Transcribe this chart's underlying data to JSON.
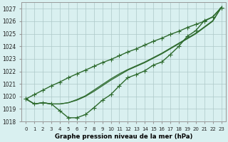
{
  "x": [
    0,
    1,
    2,
    3,
    4,
    5,
    6,
    7,
    8,
    9,
    10,
    11,
    12,
    13,
    14,
    15,
    16,
    17,
    18,
    19,
    20,
    21,
    22,
    23
  ],
  "line_deep_dip": [
    1019.8,
    1019.4,
    1019.5,
    1019.4,
    1018.85,
    1018.3,
    1018.3,
    1018.55,
    1019.1,
    1019.7,
    1020.15,
    1020.85,
    1021.5,
    1021.75,
    1022.05,
    1022.5,
    1022.75,
    1023.35,
    1024.0,
    1024.8,
    1025.25,
    1026.05,
    1026.35,
    1027.1
  ],
  "line_straight": [
    1019.8,
    1020.15,
    1020.5,
    1020.85,
    1021.15,
    1021.5,
    1021.8,
    1022.1,
    1022.4,
    1022.7,
    1022.95,
    1023.25,
    1023.55,
    1023.8,
    1024.1,
    1024.4,
    1024.65,
    1024.95,
    1025.2,
    1025.5,
    1025.75,
    1026.0,
    1026.35,
    1027.1
  ],
  "line_mid1": [
    1019.8,
    1019.4,
    1019.5,
    1019.4,
    1019.4,
    1019.5,
    1019.7,
    1020.0,
    1020.4,
    1020.85,
    1021.3,
    1021.7,
    1022.1,
    1022.4,
    1022.7,
    1023.05,
    1023.4,
    1023.8,
    1024.2,
    1024.6,
    1025.0,
    1025.5,
    1026.0,
    1027.1
  ],
  "line_mid2": [
    1019.8,
    1019.4,
    1019.5,
    1019.4,
    1019.4,
    1019.5,
    1019.75,
    1020.05,
    1020.5,
    1020.95,
    1021.4,
    1021.8,
    1022.15,
    1022.45,
    1022.75,
    1023.1,
    1023.45,
    1023.85,
    1024.25,
    1024.65,
    1025.05,
    1025.55,
    1026.05,
    1027.1
  ],
  "line_color": "#2d6a2d",
  "bg_color": "#d9f0f0",
  "grid_color": "#adc8c8",
  "xlabel": "Graphe pression niveau de la mer (hPa)",
  "ylim": [
    1018.0,
    1027.5
  ],
  "yticks": [
    1018,
    1019,
    1020,
    1021,
    1022,
    1023,
    1024,
    1025,
    1026,
    1027
  ],
  "xticks": [
    0,
    1,
    2,
    3,
    4,
    5,
    6,
    7,
    8,
    9,
    10,
    11,
    12,
    13,
    14,
    15,
    16,
    17,
    18,
    19,
    20,
    21,
    22,
    23
  ],
  "markersize": 2.8,
  "linewidth": 1.0
}
